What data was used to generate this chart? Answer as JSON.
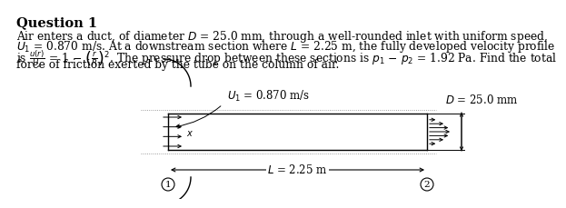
{
  "title": "Question 1",
  "body_lines": [
    "Air enters a duct, of diameter $D$ = 25.0 mm, through a well-rounded inlet with uniform speed,",
    "$U_1$ = 0.870 m/s. At a downstream section where $L$ = 2.25 m, the fully developed velocity profile",
    "is $\\frac{u(r)}{U_c}$ = 1 $-$ $\\left(\\frac{r}{R}\\right)^2$. The pressure drop between these sections is $p_1$ $-$ $p_2$ = 1.92 Pa. Find the total",
    "force of friction exerted by the tube on the column of air."
  ],
  "label_U1": "$U_1$ = 0.870 m/s",
  "label_D": "$D$ = 25.0 mm",
  "label_L": "$L$ = 2.25 m",
  "bg_color": "#ffffff",
  "text_color": "#000000",
  "title_fontsize": 10.5,
  "body_fontsize": 8.8,
  "diag_fontsize": 8.5
}
